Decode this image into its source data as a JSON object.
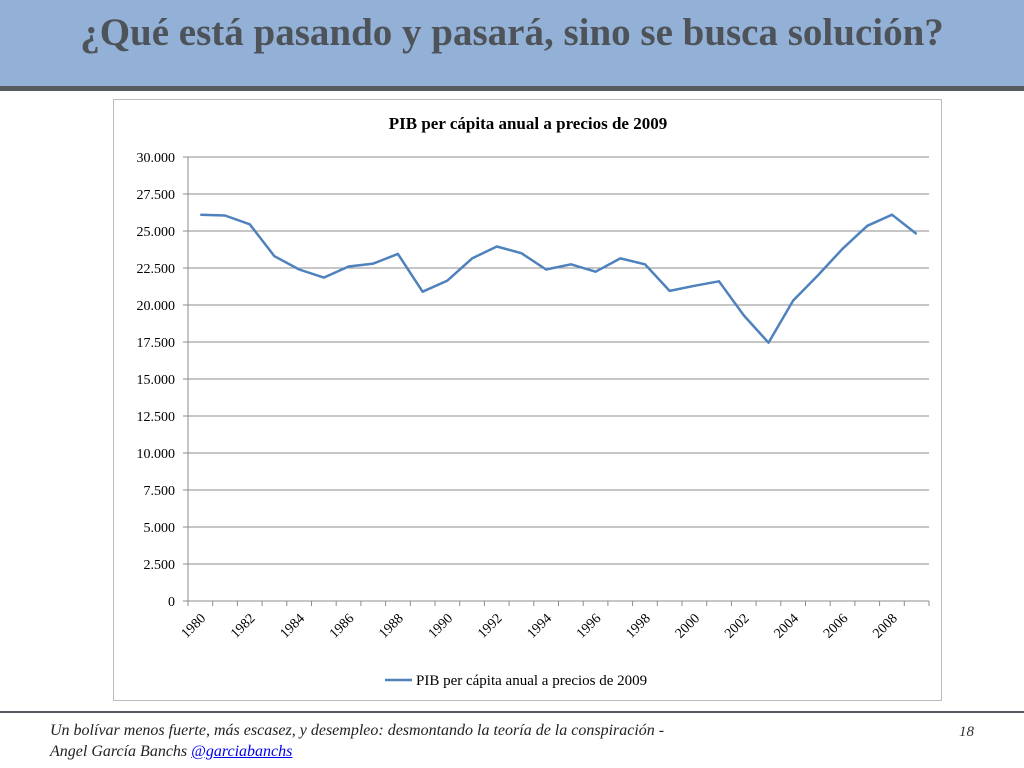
{
  "slide": {
    "title": "¿Qué está pasando y pasará, sino se busca solución?",
    "footer_line1": "Un bolívar menos fuerte, más escasez, y desempleo: desmontando la teoría de la conspiración -",
    "footer_line2": "Angel García Banchs",
    "footer_handle": "@garciabanchs",
    "page_number": "18"
  },
  "chart_data": {
    "type": "line",
    "title": "PIB per cápita anual a precios de 2009",
    "xlabel": "",
    "ylabel": "",
    "ylim": [
      0,
      30000
    ],
    "yticks": [
      "0",
      "2.500",
      "5.000",
      "7.500",
      "10.000",
      "12.500",
      "15.000",
      "17.500",
      "20.000",
      "22.500",
      "25.000",
      "27.500",
      "30.000"
    ],
    "x": [
      1980,
      1981,
      1982,
      1983,
      1984,
      1985,
      1986,
      1987,
      1988,
      1989,
      1990,
      1991,
      1992,
      1993,
      1994,
      1995,
      1996,
      1997,
      1998,
      1999,
      2000,
      2001,
      2002,
      2003,
      2004,
      2005,
      2006,
      2007,
      2008,
      2009
    ],
    "xtick_labels": [
      "1980",
      "1982",
      "1984",
      "1986",
      "1988",
      "1990",
      "1992",
      "1994",
      "1996",
      "1998",
      "2000",
      "2002",
      "2004",
      "2006",
      "2008"
    ],
    "grid": true,
    "legend_position": "bottom",
    "color": "#4f81bd",
    "series": [
      {
        "name": "PIB per cápita anual a precios de 2009",
        "values": [
          26100,
          26050,
          25450,
          23300,
          22400,
          21850,
          22600,
          22800,
          23450,
          20900,
          21650,
          23150,
          23950,
          23500,
          22400,
          22750,
          22250,
          23150,
          22750,
          20950,
          21300,
          21600,
          19300,
          17450,
          20300,
          22000,
          23800,
          25350,
          26100,
          24800
        ]
      }
    ]
  }
}
